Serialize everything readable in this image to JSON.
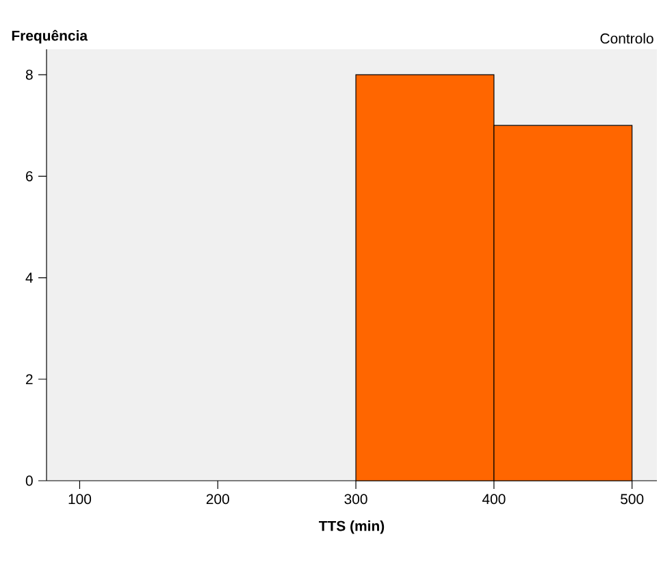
{
  "chart_data": {
    "type": "histogram",
    "title": "Controlo",
    "xlabel": "TTS (min)",
    "ylabel": "Frequência",
    "bins": [
      300,
      400,
      500
    ],
    "values": [
      8,
      7
    ],
    "color": "#ff6600",
    "xlim": [
      76,
      518
    ],
    "ylim": [
      0,
      8.5
    ],
    "xticks": [
      100,
      200,
      300,
      400,
      500
    ],
    "yticks": [
      0,
      2,
      4,
      6,
      8
    ],
    "grid": false
  }
}
